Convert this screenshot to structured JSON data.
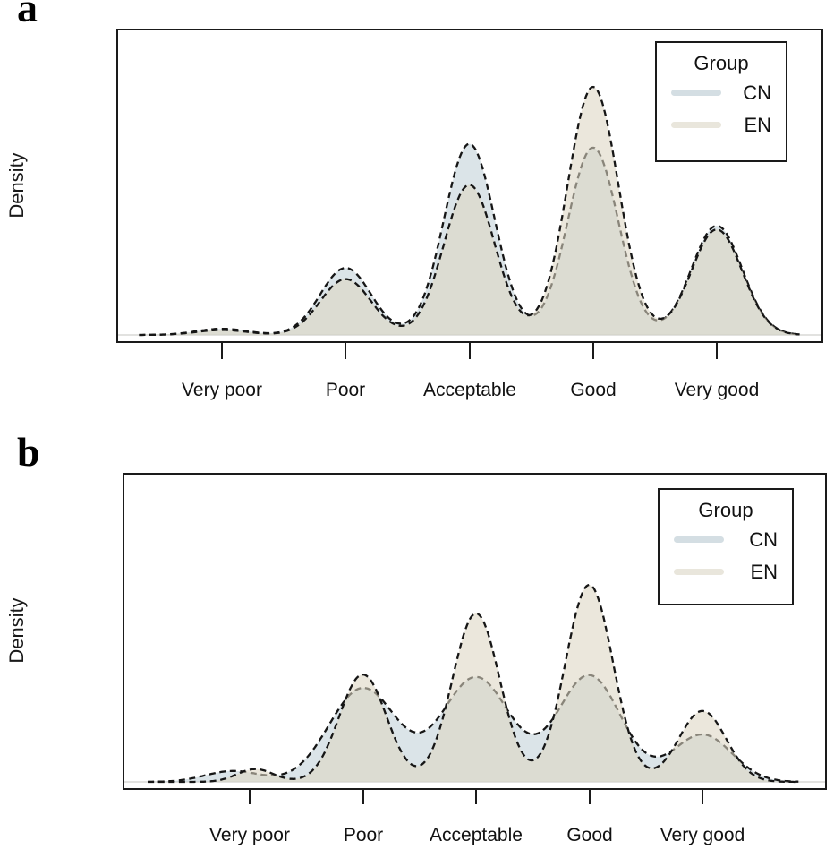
{
  "panels": [
    {
      "label": "a",
      "ylabel": "Density"
    },
    {
      "label": "b",
      "ylabel": "Density"
    }
  ],
  "chart_data": [
    {
      "id": "a",
      "type": "area",
      "subtype": "kernel-density",
      "title": "",
      "xlabel": "",
      "ylabel": "Density",
      "categories": [
        "Very poor",
        "Poor",
        "Acceptable",
        "Good",
        "Very good"
      ],
      "category_positions": [
        1,
        2,
        3,
        4,
        5
      ],
      "xlim": [
        0.33,
        5.68
      ],
      "ylim": [
        0,
        1.05
      ],
      "grid": false,
      "y_ticks": "none",
      "legend": {
        "title": "Group",
        "position": "top-right"
      },
      "baseline_color": "#d8d8d6",
      "line_style": "dashed",
      "series": [
        {
          "name": "CN",
          "sigma": 0.205,
          "stroke": "#161616",
          "fill": "#b7c9d2",
          "fill_opacity": 0.5,
          "swatch": "#d4dee3",
          "peaks": [
            {
              "x": 1,
              "h": 0.025
            },
            {
              "x": 2,
              "h": 0.27
            },
            {
              "x": 3,
              "h": 0.77
            },
            {
              "x": 4,
              "h": 0.755
            },
            {
              "x": 5,
              "h": 0.44
            }
          ]
        },
        {
          "name": "EN",
          "sigma": 0.205,
          "stroke": "#161616",
          "fill": "#ddd5c2",
          "fill_opacity": 0.58,
          "swatch": "#e9e6dc",
          "peaks": [
            {
              "x": 1,
              "h": 0.02
            },
            {
              "x": 2,
              "h": 0.225
            },
            {
              "x": 3,
              "h": 0.605
            },
            {
              "x": 4,
              "h": 1.0
            },
            {
              "x": 5,
              "h": 0.425
            }
          ]
        }
      ]
    },
    {
      "id": "b",
      "type": "area",
      "subtype": "kernel-density",
      "title": "",
      "xlabel": "",
      "ylabel": "Density",
      "categories": [
        "Very poor",
        "Poor",
        "Acceptable",
        "Good",
        "Very good"
      ],
      "category_positions": [
        1,
        2,
        3,
        4,
        5
      ],
      "xlim": [
        0.1,
        5.85
      ],
      "ylim": [
        0,
        1.05
      ],
      "grid": false,
      "y_ticks": "none",
      "legend": {
        "title": "Group",
        "position": "top-right"
      },
      "baseline_color": "#d8d8d6",
      "line_style": "dashed",
      "series": [
        {
          "name": "CN",
          "sigma": 0.3,
          "stroke": "#161616",
          "fill": "#b7c9d2",
          "fill_opacity": 0.5,
          "swatch": "#d4dee3",
          "peaks": [
            {
              "x": 0.85,
              "h": 0.055,
              "s": 0.24
            },
            {
              "x": 2,
              "h": 0.475,
              "s": 0.3
            },
            {
              "x": 3,
              "h": 0.53,
              "s": 0.3
            },
            {
              "x": 4,
              "h": 0.54,
              "s": 0.28
            },
            {
              "x": 5,
              "h": 0.24,
              "s": 0.26
            }
          ]
        },
        {
          "name": "EN",
          "sigma": 0.21,
          "stroke": "#161616",
          "fill": "#ddd5c2",
          "fill_opacity": 0.58,
          "swatch": "#e9e6dc",
          "peaks": [
            {
              "x": 1.05,
              "h": 0.065,
              "s": 0.16
            },
            {
              "x": 2,
              "h": 0.545,
              "s": 0.21
            },
            {
              "x": 3,
              "h": 0.855,
              "s": 0.21
            },
            {
              "x": 4,
              "h": 1.0,
              "s": 0.21
            },
            {
              "x": 5,
              "h": 0.36,
              "s": 0.21
            }
          ]
        }
      ]
    }
  ]
}
